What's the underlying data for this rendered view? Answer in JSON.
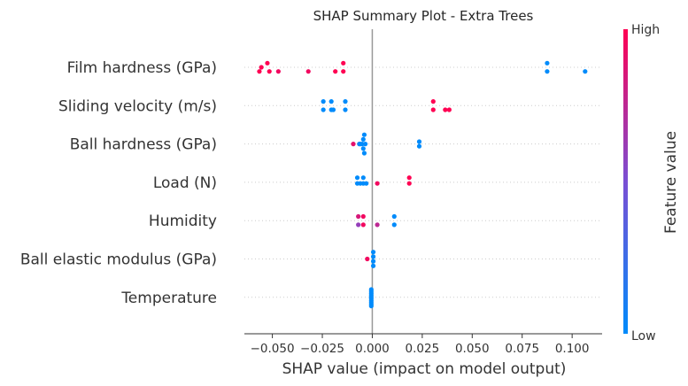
{
  "chart_data": {
    "type": "scatter",
    "title": "SHAP Summary Plot - Extra Trees",
    "xlabel": "SHAP value (impact on model output)",
    "ylabel": "",
    "xlim": [
      -0.064,
      0.115
    ],
    "xticks": [
      -0.05,
      -0.025,
      0.0,
      0.025,
      0.05,
      0.075,
      0.1
    ],
    "xtick_labels": [
      "−0.050",
      "−0.025",
      "0.000",
      "0.025",
      "0.050",
      "0.075",
      "0.100"
    ],
    "features": [
      "Film hardness (GPa)",
      "Sliding velocity (m/s)",
      "Ball hardness (GPa)",
      "Load (N)",
      "Humidity",
      "Ball elastic modulus (GPa)",
      "Temperature"
    ],
    "colorbar": {
      "label": "Feature value",
      "high": "High",
      "low": "Low",
      "high_color": "#ff0052",
      "low_color": "#008bfb"
    },
    "points": [
      [
        {
          "x": -0.0525,
          "y": 0.18,
          "v": 1.0
        },
        {
          "x": -0.0555,
          "y": 0.0,
          "v": 1.0
        },
        {
          "x": -0.0565,
          "y": -0.18,
          "v": 1.0
        },
        {
          "x": -0.0515,
          "y": -0.18,
          "v": 1.0
        },
        {
          "x": -0.047,
          "y": -0.18,
          "v": 0.95
        },
        {
          "x": -0.032,
          "y": -0.18,
          "v": 0.95
        },
        {
          "x": -0.0145,
          "y": 0.18,
          "v": 1.0
        },
        {
          "x": -0.0145,
          "y": -0.18,
          "v": 1.0
        },
        {
          "x": -0.0185,
          "y": -0.18,
          "v": 1.0
        },
        {
          "x": 0.0875,
          "y": 0.18,
          "v": 0.0
        },
        {
          "x": 0.0875,
          "y": -0.18,
          "v": 0.0
        },
        {
          "x": 0.1065,
          "y": -0.18,
          "v": 0.0
        }
      ],
      [
        {
          "x": -0.0245,
          "y": 0.18,
          "v": 0.0
        },
        {
          "x": -0.0245,
          "y": -0.18,
          "v": 0.0
        },
        {
          "x": -0.0205,
          "y": 0.18,
          "v": 0.0
        },
        {
          "x": -0.0205,
          "y": -0.18,
          "v": 0.0
        },
        {
          "x": -0.0195,
          "y": -0.18,
          "v": 0.0
        },
        {
          "x": -0.0135,
          "y": 0.18,
          "v": 0.0
        },
        {
          "x": -0.0135,
          "y": -0.18,
          "v": 0.0
        },
        {
          "x": 0.0305,
          "y": 0.18,
          "v": 1.0
        },
        {
          "x": 0.0305,
          "y": -0.18,
          "v": 1.0
        },
        {
          "x": 0.0365,
          "y": -0.18,
          "v": 1.0
        },
        {
          "x": 0.0385,
          "y": -0.18,
          "v": 1.0
        }
      ],
      [
        {
          "x": -0.0095,
          "y": 0.0,
          "v": 0.9
        },
        {
          "x": -0.0065,
          "y": 0.0,
          "v": 0.1
        },
        {
          "x": -0.006,
          "y": 0.0,
          "v": 0.0
        },
        {
          "x": -0.005,
          "y": 0.0,
          "v": 0.0
        },
        {
          "x": -0.0045,
          "y": 0.2,
          "v": 0.0
        },
        {
          "x": -0.0045,
          "y": -0.2,
          "v": 0.0
        },
        {
          "x": -0.004,
          "y": 0.4,
          "v": 0.0
        },
        {
          "x": -0.004,
          "y": -0.4,
          "v": 0.0
        },
        {
          "x": -0.0035,
          "y": 0.0,
          "v": 0.0
        },
        {
          "x": 0.0235,
          "y": 0.1,
          "v": 0.0
        },
        {
          "x": 0.0235,
          "y": -0.1,
          "v": 0.0
        }
      ],
      [
        {
          "x": -0.0075,
          "y": 0.2,
          "v": 0.0
        },
        {
          "x": -0.0045,
          "y": 0.2,
          "v": 0.0
        },
        {
          "x": -0.0075,
          "y": -0.05,
          "v": 0.0
        },
        {
          "x": -0.006,
          "y": -0.05,
          "v": 0.0
        },
        {
          "x": -0.0045,
          "y": -0.05,
          "v": 0.0
        },
        {
          "x": -0.003,
          "y": -0.05,
          "v": 0.0
        },
        {
          "x": 0.0025,
          "y": -0.05,
          "v": 0.95
        },
        {
          "x": 0.0185,
          "y": 0.2,
          "v": 1.0
        },
        {
          "x": 0.0185,
          "y": -0.05,
          "v": 1.0
        }
      ],
      [
        {
          "x": -0.007,
          "y": 0.18,
          "v": 0.85
        },
        {
          "x": -0.0045,
          "y": 0.18,
          "v": 0.95
        },
        {
          "x": -0.007,
          "y": -0.18,
          "v": 0.6
        },
        {
          "x": -0.0045,
          "y": -0.18,
          "v": 0.95
        },
        {
          "x": 0.0025,
          "y": -0.18,
          "v": 0.75
        },
        {
          "x": 0.011,
          "y": 0.18,
          "v": 0.0
        },
        {
          "x": 0.011,
          "y": -0.18,
          "v": 0.0
        }
      ],
      [
        {
          "x": -0.0025,
          "y": 0.0,
          "v": 0.95
        },
        {
          "x": 0.0005,
          "y": 0.3,
          "v": 0.0
        },
        {
          "x": 0.0005,
          "y": 0.1,
          "v": 0.0
        },
        {
          "x": 0.0005,
          "y": -0.1,
          "v": 0.0
        },
        {
          "x": 0.0005,
          "y": -0.3,
          "v": 0.0
        }
      ],
      [
        {
          "x": -0.0005,
          "y": 0.34,
          "v": 0.0
        },
        {
          "x": -0.0005,
          "y": 0.26,
          "v": 0.0
        },
        {
          "x": -0.0005,
          "y": 0.18,
          "v": 0.0
        },
        {
          "x": -0.0005,
          "y": 0.1,
          "v": 0.0
        },
        {
          "x": -0.0005,
          "y": 0.02,
          "v": 0.0
        },
        {
          "x": -0.0005,
          "y": -0.06,
          "v": 0.0
        },
        {
          "x": -0.0005,
          "y": -0.14,
          "v": 0.0
        },
        {
          "x": -0.0005,
          "y": -0.22,
          "v": 0.0
        },
        {
          "x": -0.0005,
          "y": -0.3,
          "v": 0.0
        },
        {
          "x": -0.0005,
          "y": -0.38,
          "v": 0.0
        }
      ]
    ]
  }
}
